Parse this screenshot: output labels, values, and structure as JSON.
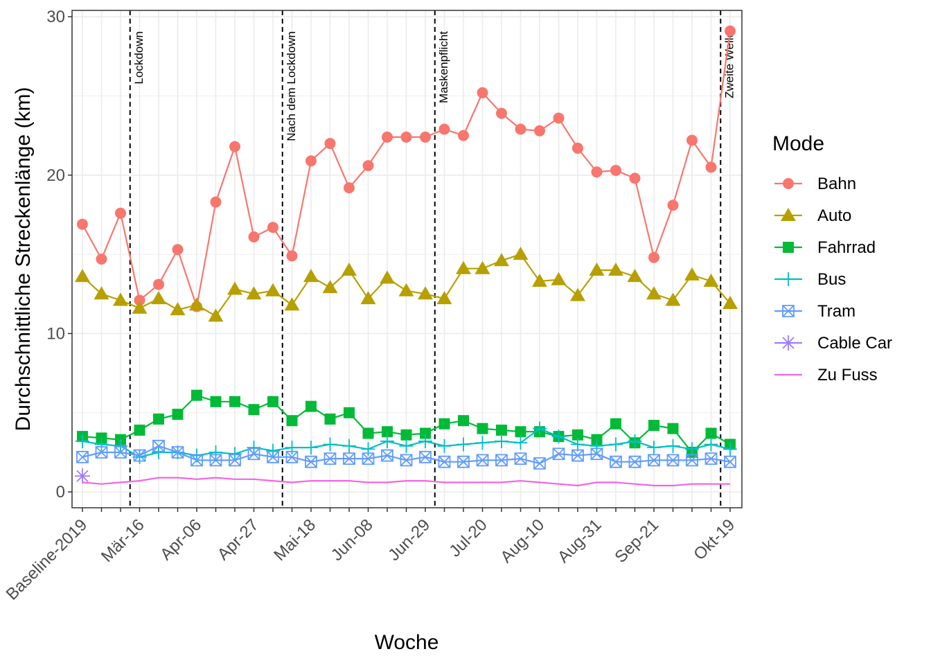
{
  "chart_data": {
    "type": "line",
    "xlabel": "Woche",
    "ylabel": "Durchschnittliche Streckenlänge (km)",
    "ylim": [
      -1,
      30.4
    ],
    "y_ticks": [
      0,
      10,
      20,
      30
    ],
    "grid": true,
    "legend_title": "Mode",
    "legend_position": "right",
    "x_count": 35,
    "x_tick_labels": [
      {
        "index": 0,
        "label": "Baseline-2019"
      },
      {
        "index": 3,
        "label": "Mär-16"
      },
      {
        "index": 6,
        "label": "Apr-06"
      },
      {
        "index": 9,
        "label": "Apr-27"
      },
      {
        "index": 12,
        "label": "Mai-18"
      },
      {
        "index": 15,
        "label": "Jun-08"
      },
      {
        "index": 18,
        "label": "Jun-29"
      },
      {
        "index": 21,
        "label": "Jul-20"
      },
      {
        "index": 24,
        "label": "Aug-10"
      },
      {
        "index": 27,
        "label": "Aug-31"
      },
      {
        "index": 30,
        "label": "Sep-21"
      },
      {
        "index": 34,
        "label": "Okt-19"
      }
    ],
    "annotations": [
      {
        "x": 2.5,
        "label": "Lockdown"
      },
      {
        "x": 10.5,
        "label": "Nach dem Lockdown"
      },
      {
        "x": 18.5,
        "label": "Maskenpflicht"
      },
      {
        "x": 33.5,
        "label": "Zweite Welle"
      }
    ],
    "series": [
      {
        "name": "Bahn",
        "color": "#F8766D",
        "marker": "circle",
        "values": [
          16.9,
          14.7,
          17.6,
          12.1,
          13.1,
          15.3,
          11.7,
          18.3,
          21.8,
          16.1,
          16.7,
          14.9,
          20.9,
          22.0,
          19.2,
          20.6,
          22.4,
          22.4,
          22.4,
          22.9,
          22.5,
          25.2,
          23.9,
          22.9,
          22.8,
          23.6,
          21.7,
          20.2,
          20.3,
          19.8,
          14.8,
          18.1,
          22.2,
          20.5,
          29.1
        ]
      },
      {
        "name": "Auto",
        "color": "#B79F00",
        "marker": "triangle",
        "values": [
          13.6,
          12.5,
          12.1,
          11.6,
          12.2,
          11.5,
          11.8,
          11.1,
          12.8,
          12.5,
          12.7,
          11.8,
          13.6,
          12.9,
          14.0,
          12.2,
          13.5,
          12.7,
          12.5,
          12.2,
          14.1,
          14.1,
          14.6,
          15.0,
          13.3,
          13.4,
          12.4,
          14.0,
          14.0,
          13.6,
          12.5,
          12.1,
          13.7,
          13.3,
          11.9
        ]
      },
      {
        "name": "Fahrrad",
        "color": "#00BA38",
        "marker": "square",
        "values": [
          3.5,
          3.4,
          3.3,
          3.9,
          4.6,
          4.9,
          6.1,
          5.7,
          5.7,
          5.2,
          5.7,
          4.5,
          5.4,
          4.6,
          5.0,
          3.7,
          3.8,
          3.6,
          3.7,
          4.3,
          4.5,
          4.0,
          3.9,
          3.8,
          3.8,
          3.5,
          3.6,
          3.3,
          4.3,
          3.1,
          4.2,
          4.0,
          2.5,
          3.7,
          3.0
        ]
      },
      {
        "name": "Bus",
        "color": "#00BFC4",
        "marker": "plus",
        "values": [
          3.2,
          3.0,
          2.9,
          2.2,
          2.5,
          2.5,
          2.3,
          2.5,
          2.4,
          2.8,
          2.6,
          2.8,
          2.8,
          3.0,
          2.9,
          2.7,
          3.2,
          2.9,
          3.2,
          2.9,
          3.0,
          3.1,
          3.2,
          3.1,
          4.0,
          3.5,
          3.0,
          2.9,
          3.0,
          3.2,
          2.8,
          2.9,
          2.7,
          3.0,
          2.7
        ]
      },
      {
        "name": "Tram",
        "color": "#619CFF",
        "marker": "boxx",
        "values": [
          2.2,
          2.5,
          2.5,
          2.3,
          2.9,
          2.5,
          2.0,
          2.0,
          2.0,
          2.4,
          2.2,
          2.2,
          1.9,
          2.1,
          2.1,
          2.1,
          2.3,
          2.0,
          2.2,
          1.9,
          1.9,
          2.0,
          2.0,
          2.1,
          1.8,
          2.4,
          2.3,
          2.4,
          1.9,
          1.9,
          2.0,
          2.0,
          2.0,
          2.1,
          1.9
        ]
      },
      {
        "name": "Cable Car",
        "color": "#9F7BFF",
        "marker": "asterisk",
        "values": [
          1.0,
          null,
          null,
          null,
          null,
          null,
          null,
          null,
          null,
          null,
          null,
          null,
          null,
          null,
          null,
          null,
          null,
          null,
          null,
          null,
          null,
          null,
          null,
          null,
          null,
          null,
          null,
          null,
          null,
          null,
          null,
          null,
          null,
          null,
          null
        ]
      },
      {
        "name": "Zu Fuss",
        "color": "#F564E3",
        "marker": "none",
        "values": [
          0.6,
          0.5,
          0.6,
          0.7,
          0.9,
          0.9,
          0.8,
          0.9,
          0.8,
          0.8,
          0.7,
          0.6,
          0.7,
          0.7,
          0.7,
          0.6,
          0.6,
          0.7,
          0.7,
          0.6,
          0.6,
          0.6,
          0.6,
          0.7,
          0.6,
          0.5,
          0.4,
          0.6,
          0.6,
          0.5,
          0.4,
          0.4,
          0.5,
          0.5,
          0.5
        ]
      }
    ]
  }
}
